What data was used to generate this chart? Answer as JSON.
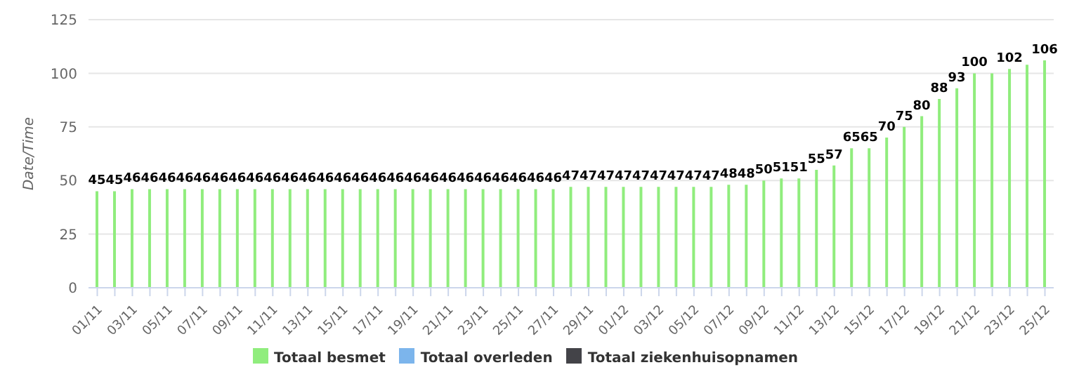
{
  "chart_data": {
    "type": "bar",
    "ylabel": "Date/Time",
    "categories": [
      "01/11",
      null,
      "03/11",
      null,
      "05/11",
      null,
      "07/11",
      null,
      "09/11",
      null,
      "11/11",
      null,
      "13/11",
      null,
      "15/11",
      null,
      "17/11",
      null,
      "19/11",
      null,
      "21/11",
      null,
      "23/11",
      null,
      "25/11",
      null,
      "27/11",
      null,
      "29/11",
      null,
      "01/12",
      null,
      "03/12",
      null,
      "05/12",
      null,
      "07/12",
      null,
      "09/12",
      null,
      "11/12",
      null,
      "13/12",
      null,
      "15/12",
      null,
      "17/12",
      null,
      "19/12",
      null,
      "21/12",
      null,
      "23/12",
      null,
      "25/12"
    ],
    "series": [
      {
        "name": "Totaal besmet",
        "color": "#90ed7d",
        "values": [
          45,
          45,
          46,
          46,
          46,
          46,
          46,
          46,
          46,
          46,
          46,
          46,
          46,
          46,
          46,
          46,
          46,
          46,
          46,
          46,
          46,
          46,
          46,
          46,
          46,
          46,
          46,
          47,
          47,
          47,
          47,
          47,
          47,
          47,
          47,
          47,
          48,
          48,
          50,
          51,
          51,
          55,
          57,
          65,
          65,
          70,
          75,
          80,
          88,
          93,
          100,
          100,
          102,
          104,
          106
        ],
        "value_labels": [
          "45",
          "45",
          "46",
          "46",
          "46",
          "46",
          "46",
          "46",
          "46",
          "46",
          "46",
          "46",
          "46",
          "46",
          "46",
          "46",
          "46",
          "46",
          "46",
          "46",
          "46",
          "46",
          "46",
          "46",
          "46",
          "46",
          "46",
          "47",
          "47",
          "47",
          "47",
          "47",
          "47",
          "47",
          "47",
          "47",
          "48",
          "48",
          "50",
          "51",
          "51",
          "55",
          "57",
          "65",
          "65",
          "70",
          "75",
          "80",
          "88",
          "93",
          "100",
          null,
          "102",
          null,
          "106"
        ]
      },
      {
        "name": "Totaal ziekenhuisopnamen",
        "color": "#434348",
        "values": [
          null,
          null,
          null,
          null,
          null,
          null,
          null,
          null,
          null,
          null,
          null,
          null,
          null,
          null,
          null,
          null,
          null,
          null,
          null,
          null,
          null,
          null,
          null,
          null,
          null,
          null,
          null,
          null,
          null,
          null,
          null,
          null,
          null,
          null,
          null,
          null,
          null,
          null,
          null,
          null,
          null,
          null,
          null,
          null,
          null,
          null,
          null,
          null,
          null,
          null,
          null,
          null,
          null,
          null,
          null
        ]
      },
      {
        "name": "Totaal overleden",
        "color": "#7cb5ec",
        "values": [
          null,
          null,
          null,
          null,
          null,
          null,
          null,
          null,
          null,
          null,
          null,
          null,
          null,
          null,
          null,
          null,
          null,
          null,
          null,
          null,
          null,
          null,
          null,
          null,
          null,
          null,
          null,
          null,
          null,
          null,
          null,
          null,
          null,
          null,
          null,
          null,
          null,
          null,
          null,
          null,
          null,
          null,
          null,
          null,
          null,
          null,
          null,
          null,
          null,
          null,
          null,
          null,
          null,
          null,
          null
        ]
      }
    ],
    "ylim": [
      0,
      125
    ],
    "yticks": [
      0,
      25,
      50,
      75,
      100,
      125
    ],
    "grid": "y",
    "legend": "bottom"
  }
}
